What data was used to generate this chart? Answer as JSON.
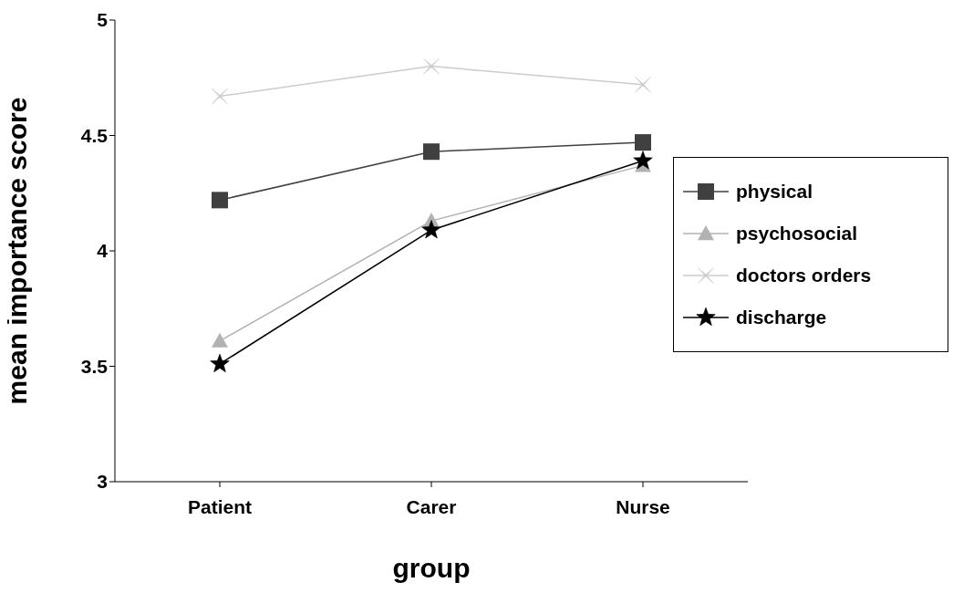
{
  "chart_data": {
    "type": "line",
    "xlabel": "group",
    "ylabel": "mean importance score",
    "categories": [
      "Patient",
      "Carer",
      "Nurse"
    ],
    "series": [
      {
        "name": "physical",
        "color": "#404040",
        "marker": "square",
        "values": [
          4.22,
          4.43,
          4.47
        ]
      },
      {
        "name": "psychosocial",
        "color": "#b2b2b2",
        "marker": "triangle",
        "values": [
          3.61,
          4.13,
          4.37
        ]
      },
      {
        "name": "doctors orders",
        "color": "#cccccc",
        "marker": "cross",
        "values": [
          4.67,
          4.8,
          4.72
        ]
      },
      {
        "name": "discharge",
        "color": "#000000",
        "marker": "star",
        "values": [
          3.51,
          4.09,
          4.39
        ]
      }
    ],
    "ylim": [
      3,
      5
    ],
    "yticks": [
      3,
      3.5,
      4,
      4.5,
      5
    ],
    "grid": false,
    "legend": "right",
    "line_style": "solid"
  }
}
